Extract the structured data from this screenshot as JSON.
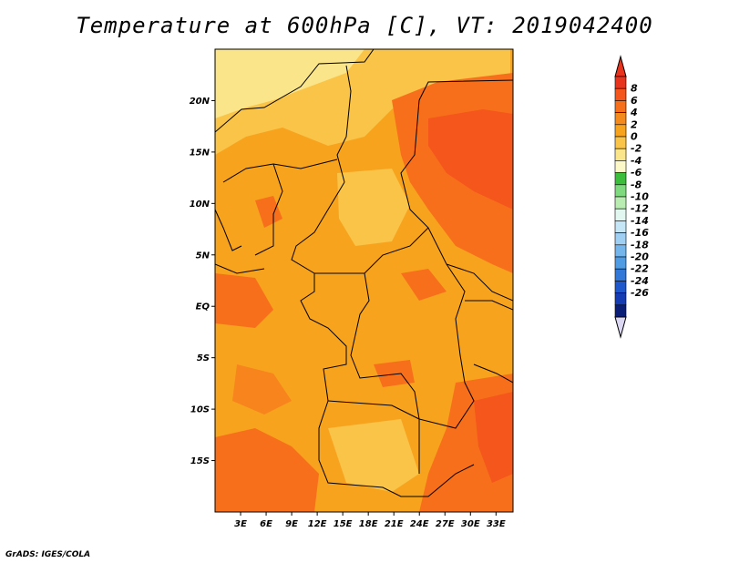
{
  "title": "Temperature at 600hPa [C], VT: 2019042400",
  "credit": "GrADS: IGES/COLA",
  "map": {
    "region": "Central Africa",
    "lat_labels": [
      "20N",
      "15N",
      "10N",
      "5N",
      "EQ",
      "5S",
      "10S",
      "15S"
    ],
    "lat_values": [
      20,
      15,
      10,
      5,
      0,
      -5,
      -10,
      -15
    ],
    "lon_labels": [
      "3E",
      "6E",
      "9E",
      "12E",
      "15E",
      "18E",
      "21E",
      "24E",
      "27E",
      "30E",
      "33E"
    ],
    "lon_values": [
      3,
      6,
      9,
      12,
      15,
      18,
      21,
      24,
      27,
      30,
      33
    ],
    "lat_range": [
      -20,
      25
    ],
    "lon_range": [
      0,
      35
    ]
  },
  "colorbar": {
    "labels": [
      "8",
      "6",
      "4",
      "2",
      "0",
      "-2",
      "-4",
      "-6",
      "-8",
      "-10",
      "-12",
      "-14",
      "-16",
      "-18",
      "-20",
      "-22",
      "-24",
      "-26"
    ],
    "colors": [
      "#e8341c",
      "#f4561c",
      "#f76f1b",
      "#f58a1c",
      "#f8a31e",
      "#f9c448",
      "#fae58a",
      "#fcf8c8",
      "#3cbd3c",
      "#7fd97f",
      "#b8ecb0",
      "#e2f7ef",
      "#c4e6f7",
      "#9fcff2",
      "#74b6ec",
      "#509ce4",
      "#3278d8",
      "#1f58cc",
      "#163cb4",
      "#0a1e78"
    ],
    "top_arrow_color": "#e8341c",
    "bottom_arrow_color": "#dcd8f4"
  }
}
